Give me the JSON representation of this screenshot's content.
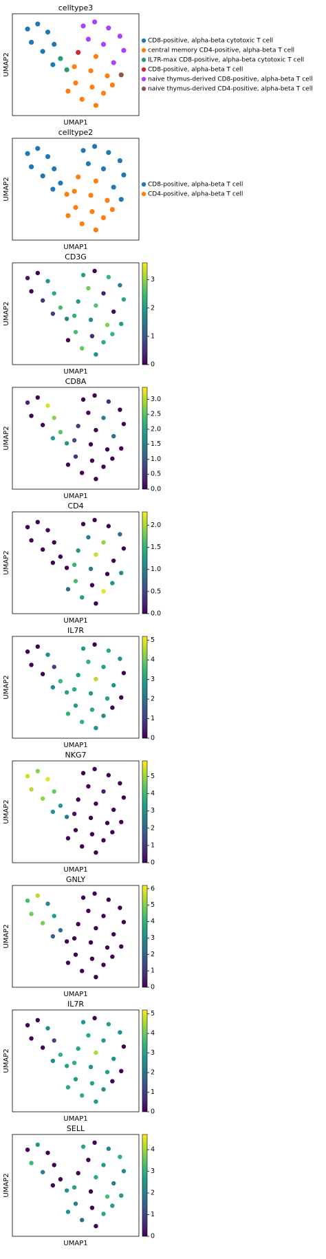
{
  "chart_data": [
    {
      "type": "category_scatter",
      "title": "celltype3",
      "xlabel": "UMAP1",
      "ylabel": "UMAP2",
      "xlim": [
        0,
        10
      ],
      "ylim": [
        0,
        10
      ],
      "legend": "right",
      "series": [
        {
          "name": "CD8-positive, alpha-beta cytotoxic T cell",
          "color": "#1f77b4",
          "x": [
            1.2,
            2.0,
            2.8,
            1.5,
            3.3,
            2.4,
            3.2
          ],
          "y": [
            8.5,
            9.0,
            8.2,
            7.2,
            7.0,
            6.3,
            5.0
          ]
        },
        {
          "name": "central memory CD4-positive, alpha-beta T cell",
          "color": "#ff7f0e",
          "x": [
            6.6,
            4.9,
            6.2,
            7.5,
            5.0,
            6.3,
            7.2,
            5.5,
            6.6,
            4.4,
            7.9
          ],
          "y": [
            5.8,
            4.8,
            4.4,
            3.9,
            3.2,
            2.8,
            2.2,
            1.6,
            1.0,
            2.4,
            3.0
          ]
        },
        {
          "name": "IL7R-max CD8-positive, alpha-beta cytotoxic T cell",
          "color": "#279e68",
          "x": [
            3.8,
            4.3
          ],
          "y": [
            5.6,
            4.5
          ]
        },
        {
          "name": "CD8-positive, alpha-beta T cell",
          "color": "#d62728",
          "x": [
            5.2
          ],
          "y": [
            6.2
          ]
        },
        {
          "name": "naive thymus-derived CD8-positive, alpha-beta T cell",
          "color": "#aa40fc",
          "x": [
            5.6,
            6.5,
            7.6,
            8.5,
            6.0,
            7.2,
            8.8,
            8.0
          ],
          "y": [
            8.8,
            9.2,
            8.6,
            7.8,
            7.5,
            7.0,
            6.4,
            5.2
          ]
        },
        {
          "name": "naive thymus-derived CD4-positive, alpha-beta T cell",
          "color": "#8c564b",
          "x": [
            8.6
          ],
          "y": [
            4.0
          ]
        }
      ]
    },
    {
      "type": "category_scatter",
      "title": "celltype2",
      "xlabel": "UMAP1",
      "ylabel": "UMAP2",
      "xlim": [
        0,
        10
      ],
      "ylim": [
        0,
        10
      ],
      "legend": "right",
      "series": [
        {
          "name": "CD8-positive, alpha-beta T cell",
          "color": "#1f77b4",
          "x": [
            1.2,
            2.0,
            2.8,
            1.5,
            3.3,
            2.4,
            3.8,
            5.6,
            6.5,
            7.6,
            8.5,
            6.0,
            7.2,
            8.8,
            8.0,
            8.6,
            3.2
          ],
          "y": [
            8.5,
            9.0,
            8.2,
            7.2,
            7.0,
            6.3,
            5.6,
            8.8,
            9.2,
            8.6,
            7.8,
            7.5,
            7.0,
            6.4,
            5.2,
            4.0,
            5.0
          ]
        },
        {
          "name": "CD4-positive, alpha-beta T cell",
          "color": "#ff7f0e",
          "x": [
            4.3,
            5.2,
            6.6,
            4.9,
            6.2,
            7.5,
            5.0,
            6.3,
            7.2,
            5.5,
            6.6,
            4.4,
            7.9
          ],
          "y": [
            4.5,
            6.2,
            5.8,
            4.8,
            4.4,
            3.9,
            3.2,
            2.8,
            2.2,
            1.6,
            1.0,
            2.4,
            3.0
          ]
        }
      ]
    },
    {
      "type": "scatter",
      "title": "CD3G",
      "xlabel": "UMAP1",
      "ylabel": "UMAP2",
      "xlim": [
        0,
        10
      ],
      "ylim": [
        0,
        10
      ],
      "colormap": "viridis",
      "clim": [
        0,
        3.6
      ],
      "cticks": [
        0,
        1,
        2,
        3
      ],
      "x": [
        1.2,
        2.0,
        2.8,
        1.5,
        3.3,
        2.4,
        3.8,
        4.3,
        5.6,
        6.5,
        7.6,
        8.5,
        6.0,
        7.2,
        8.8,
        5.2,
        6.6,
        8.0,
        4.9,
        6.2,
        7.5,
        8.6,
        5.0,
        6.3,
        7.2,
        5.5,
        6.6,
        4.4,
        7.9,
        3.2
      ],
      "y": [
        8.5,
        9.0,
        8.2,
        7.2,
        7.0,
        6.3,
        5.6,
        4.5,
        8.8,
        9.2,
        8.6,
        7.8,
        7.5,
        7.0,
        6.4,
        6.2,
        5.8,
        5.2,
        4.8,
        4.4,
        3.9,
        4.0,
        3.2,
        2.8,
        2.2,
        1.6,
        1.0,
        2.4,
        3.0,
        5.0
      ],
      "values": [
        0.2,
        0,
        1.8,
        0,
        2.2,
        0.5,
        2.5,
        1.6,
        2.0,
        0,
        2.4,
        1.5,
        2.8,
        0.3,
        2.1,
        1.9,
        2.6,
        0,
        2.3,
        1.7,
        2.9,
        2.0,
        2.5,
        0.4,
        2.2,
        2.7,
        1.8,
        0,
        2.4,
        0.6
      ]
    },
    {
      "type": "scatter",
      "title": "CD8A",
      "xlabel": "UMAP1",
      "ylabel": "UMAP2",
      "xlim": [
        0,
        10
      ],
      "ylim": [
        0,
        10
      ],
      "colormap": "viridis",
      "clim": [
        0,
        3.4
      ],
      "cticks": [
        {
          "value": 0,
          "label": "0.0"
        },
        0.5,
        {
          "value": 1,
          "label": "1.0"
        },
        1.5,
        {
          "value": 2,
          "label": "2.0"
        },
        2.5,
        {
          "value": 3,
          "label": "3.0"
        }
      ],
      "x": [
        1.2,
        2.0,
        2.8,
        1.5,
        3.3,
        2.4,
        3.8,
        4.3,
        5.6,
        6.5,
        7.6,
        8.5,
        6.0,
        7.2,
        8.8,
        5.2,
        6.6,
        8.0,
        4.9,
        6.2,
        7.5,
        8.6,
        5.0,
        6.3,
        7.2,
        5.5,
        6.6,
        4.4,
        7.9,
        3.2
      ],
      "y": [
        8.5,
        9.0,
        8.2,
        7.2,
        7.0,
        6.3,
        5.6,
        4.5,
        8.8,
        9.2,
        8.6,
        7.8,
        7.5,
        7.0,
        6.4,
        6.2,
        5.8,
        5.2,
        4.8,
        4.4,
        3.9,
        4.0,
        3.2,
        2.8,
        2.2,
        1.6,
        1.0,
        2.4,
        3.0,
        5.0
      ],
      "values": [
        0.3,
        0,
        3.2,
        0,
        2.8,
        0,
        2.5,
        1.8,
        0,
        0,
        0.4,
        0,
        0,
        1.5,
        0,
        0.6,
        0,
        1.2,
        0.8,
        0,
        0,
        0,
        0.5,
        0,
        0,
        0,
        0,
        0,
        0,
        1.9
      ]
    },
    {
      "type": "scatter",
      "title": "CD4",
      "xlabel": "UMAP1",
      "ylabel": "UMAP2",
      "xlim": [
        0,
        10
      ],
      "ylim": [
        0,
        10
      ],
      "colormap": "viridis",
      "clim": [
        0,
        2.3
      ],
      "cticks": [
        {
          "value": 0,
          "label": "0.0"
        },
        0.5,
        {
          "value": 1,
          "label": "1.0"
        },
        1.5,
        {
          "value": 2,
          "label": "2.0"
        }
      ],
      "x": [
        1.2,
        2.0,
        2.8,
        1.5,
        3.3,
        2.4,
        3.8,
        4.3,
        5.6,
        6.5,
        7.6,
        8.5,
        6.0,
        7.2,
        8.8,
        5.2,
        6.6,
        8.0,
        4.9,
        6.2,
        7.5,
        8.6,
        5.0,
        6.3,
        7.2,
        5.5,
        6.6,
        4.4,
        7.9,
        3.2
      ],
      "y": [
        8.5,
        9.0,
        8.2,
        7.2,
        7.0,
        6.3,
        5.6,
        4.5,
        8.8,
        9.2,
        8.6,
        7.8,
        7.5,
        7.0,
        6.4,
        6.2,
        5.8,
        5.2,
        4.8,
        4.4,
        3.9,
        4.0,
        3.2,
        2.8,
        2.2,
        1.6,
        1.0,
        2.4,
        3.0,
        5.0
      ],
      "values": [
        0,
        0,
        0,
        0,
        0,
        0,
        0,
        0,
        0,
        0,
        0,
        0.8,
        1.0,
        1.9,
        0,
        1.2,
        2.1,
        0,
        1.5,
        0.9,
        0,
        1.1,
        1.6,
        0,
        2.2,
        1.3,
        0,
        0.8,
        1.2,
        0
      ]
    },
    {
      "type": "scatter",
      "title": "IL7R",
      "xlabel": "UMAP1",
      "ylabel": "UMAP2",
      "xlim": [
        0,
        10
      ],
      "ylim": [
        0,
        10
      ],
      "colormap": "viridis",
      "clim": [
        0,
        5.2
      ],
      "cticks": [
        0,
        1,
        2,
        3,
        4,
        5
      ],
      "x": [
        1.2,
        2.0,
        2.8,
        1.5,
        3.3,
        2.4,
        3.8,
        4.3,
        5.6,
        6.5,
        7.6,
        8.5,
        6.0,
        7.2,
        8.8,
        5.2,
        6.6,
        8.0,
        4.9,
        6.2,
        7.5,
        8.6,
        5.0,
        6.3,
        7.2,
        5.5,
        6.6,
        4.4,
        7.9,
        3.2
      ],
      "y": [
        8.5,
        9.0,
        8.2,
        7.2,
        7.0,
        6.3,
        5.6,
        4.5,
        8.8,
        9.2,
        8.6,
        7.8,
        7.5,
        7.0,
        6.4,
        6.2,
        5.8,
        5.2,
        4.8,
        4.4,
        3.9,
        4.0,
        3.2,
        2.8,
        2.2,
        1.6,
        1.0,
        2.4,
        3.0,
        5.0
      ],
      "values": [
        0,
        0,
        2.5,
        0,
        1.0,
        0,
        3.5,
        3.0,
        2.8,
        0,
        3.1,
        2.6,
        3.3,
        2.9,
        0,
        3.0,
        4.6,
        2.7,
        3.2,
        2.8,
        3.0,
        0,
        2.9,
        3.1,
        2.5,
        3.4,
        2.7,
        3.3,
        0,
        2.4
      ]
    },
    {
      "type": "scatter",
      "title": "NKG7",
      "xlabel": "UMAP1",
      "ylabel": "UMAP2",
      "xlim": [
        0,
        10
      ],
      "ylim": [
        0,
        10
      ],
      "colormap": "viridis",
      "clim": [
        0,
        5.9
      ],
      "cticks": [
        0,
        1,
        2,
        3,
        4,
        5
      ],
      "x": [
        1.2,
        2.0,
        2.8,
        1.5,
        3.3,
        2.4,
        3.8,
        4.3,
        5.6,
        6.5,
        7.6,
        8.5,
        6.0,
        7.2,
        8.8,
        5.2,
        6.6,
        8.0,
        4.9,
        6.2,
        7.5,
        8.6,
        5.0,
        6.3,
        7.2,
        5.5,
        6.6,
        4.4,
        7.9,
        3.2
      ],
      "y": [
        8.5,
        9.0,
        8.2,
        7.2,
        7.0,
        6.3,
        5.6,
        4.5,
        8.8,
        9.2,
        8.6,
        7.8,
        7.5,
        7.0,
        6.4,
        6.2,
        5.8,
        5.2,
        4.8,
        4.4,
        3.9,
        4.0,
        3.2,
        2.8,
        2.2,
        1.6,
        1.0,
        2.4,
        3.0,
        5.0
      ],
      "values": [
        5.4,
        4.8,
        5.6,
        5.2,
        4.5,
        4.9,
        3.2,
        2.5,
        0,
        0,
        0,
        0,
        0,
        0.5,
        0,
        0,
        0,
        0,
        0.3,
        0,
        0,
        0,
        0,
        0,
        0,
        0,
        0,
        0,
        0,
        3.0
      ]
    },
    {
      "type": "scatter",
      "title": "GNLY",
      "xlabel": "UMAP1",
      "ylabel": "UMAP2",
      "xlim": [
        0,
        10
      ],
      "ylim": [
        0,
        10
      ],
      "colormap": "viridis",
      "clim": [
        0,
        6.2
      ],
      "cticks": [
        0,
        1,
        2,
        3,
        4,
        5,
        6
      ],
      "x": [
        1.2,
        2.0,
        2.8,
        1.5,
        3.3,
        2.4,
        3.8,
        4.3,
        5.6,
        6.5,
        7.6,
        8.5,
        6.0,
        7.2,
        8.8,
        5.2,
        6.6,
        8.0,
        4.9,
        6.2,
        7.5,
        8.6,
        5.0,
        6.3,
        7.2,
        5.5,
        6.6,
        4.4,
        7.9,
        3.2
      ],
      "y": [
        8.5,
        9.0,
        8.2,
        7.2,
        7.0,
        6.3,
        5.6,
        4.5,
        8.8,
        9.2,
        8.6,
        7.8,
        7.5,
        7.0,
        6.4,
        6.2,
        5.8,
        5.2,
        4.8,
        4.4,
        3.9,
        4.0,
        3.2,
        2.8,
        2.2,
        1.6,
        1.0,
        2.4,
        3.0,
        5.0
      ],
      "values": [
        4.3,
        5.5,
        2.8,
        4.8,
        3.5,
        4.9,
        2.2,
        0,
        0,
        0,
        0,
        0,
        0,
        0,
        0,
        0,
        0,
        0,
        0,
        0,
        0,
        0,
        0,
        0,
        0,
        0,
        0,
        0,
        0,
        1.8
      ]
    },
    {
      "type": "scatter",
      "title": "IL7R",
      "xlabel": "UMAP1",
      "ylabel": "UMAP2",
      "xlim": [
        0,
        10
      ],
      "ylim": [
        0,
        10
      ],
      "colormap": "viridis",
      "clim": [
        0,
        5.2
      ],
      "cticks": [
        0,
        1,
        2,
        3,
        4,
        5
      ],
      "x": [
        1.2,
        2.0,
        2.8,
        1.5,
        3.3,
        2.4,
        3.8,
        4.3,
        5.6,
        6.5,
        7.6,
        8.5,
        6.0,
        7.2,
        8.8,
        5.2,
        6.6,
        8.0,
        4.9,
        6.2,
        7.5,
        8.6,
        5.0,
        6.3,
        7.2,
        5.5,
        6.6,
        4.4,
        7.9,
        3.2
      ],
      "y": [
        8.5,
        9.0,
        8.2,
        7.2,
        7.0,
        6.3,
        5.6,
        4.5,
        8.8,
        9.2,
        8.6,
        7.8,
        7.5,
        7.0,
        6.4,
        6.2,
        5.8,
        5.2,
        4.8,
        4.4,
        3.9,
        4.0,
        3.2,
        2.8,
        2.2,
        1.6,
        1.0,
        2.4,
        3.0,
        5.0
      ],
      "values": [
        0,
        0,
        2.4,
        0,
        1.1,
        0,
        3.4,
        3.1,
        2.7,
        0,
        3.0,
        2.6,
        3.2,
        2.8,
        0,
        3.1,
        4.5,
        2.6,
        3.3,
        2.7,
        3.0,
        0,
        2.8,
        3.0,
        2.6,
        3.3,
        2.8,
        3.2,
        0,
        2.5
      ]
    },
    {
      "type": "scatter",
      "title": "SELL",
      "xlabel": "UMAP1",
      "ylabel": "UMAP2",
      "xlim": [
        0,
        10
      ],
      "ylim": [
        0,
        10
      ],
      "colormap": "viridis",
      "clim": [
        0,
        4.7
      ],
      "cticks": [
        0,
        1,
        2,
        3,
        4
      ],
      "x": [
        1.2,
        2.0,
        2.8,
        1.5,
        3.3,
        2.4,
        3.8,
        4.3,
        5.6,
        6.5,
        7.6,
        8.5,
        6.0,
        7.2,
        8.8,
        5.2,
        6.6,
        8.0,
        4.9,
        6.2,
        7.5,
        8.6,
        5.0,
        6.3,
        7.2,
        5.5,
        6.6,
        4.4,
        7.9,
        3.2
      ],
      "y": [
        8.5,
        9.0,
        8.2,
        7.2,
        7.0,
        6.3,
        5.6,
        4.5,
        8.8,
        9.2,
        8.6,
        7.8,
        7.5,
        7.0,
        6.4,
        6.2,
        5.8,
        5.2,
        4.8,
        4.4,
        3.9,
        4.0,
        3.2,
        2.8,
        2.2,
        1.6,
        1.0,
        2.4,
        3.0,
        5.0
      ],
      "values": [
        0,
        2.5,
        0,
        3.2,
        0,
        2.0,
        0,
        2.4,
        2.8,
        0,
        2.1,
        3.0,
        0,
        2.6,
        2.2,
        0,
        2.9,
        1.9,
        2.7,
        0,
        3.3,
        2.5,
        2.0,
        0,
        2.8,
        1.7,
        0,
        2.4,
        2.6,
        0
      ]
    }
  ]
}
